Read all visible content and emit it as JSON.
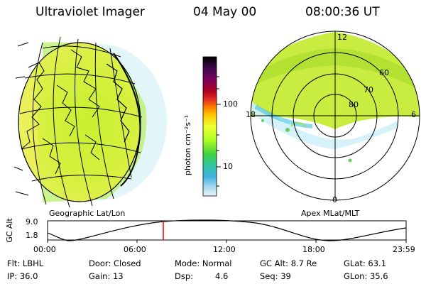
{
  "header": {
    "instrument": "Ultraviolet Imager",
    "date": "04 May 00",
    "time": "08:00:36 UT"
  },
  "panels": {
    "left_label": "Geographic Lat/Lon",
    "right_label": "Apex MLat/MLT"
  },
  "colorbar": {
    "unit_label": "photon cm⁻²s⁻¹",
    "ticks": [
      "100",
      "10"
    ],
    "colors": [
      "#000000",
      "#3a0a4a",
      "#7a0060",
      "#b00020",
      "#e83020",
      "#ff7a00",
      "#ffc800",
      "#f0ff30",
      "#aaff20",
      "#40d040",
      "#30c8a0",
      "#40b0e0",
      "#a0d8f0",
      "#e8f4fa"
    ]
  },
  "polar": {
    "mlt_labels": {
      "top": "12",
      "right": "6",
      "left": "18",
      "bottom": "0"
    },
    "mlat_labels": [
      "60",
      "70",
      "80"
    ]
  },
  "altitude_plot": {
    "ylabel": "GC Alt",
    "yticks": [
      "9.0",
      "1.8"
    ],
    "xticks": [
      "00:00",
      "06:00",
      "12:00",
      "18:00",
      "23:59"
    ]
  },
  "info": {
    "flt": "Flt: LBHL",
    "ip": "IP: 36.0",
    "door": "Door: Closed",
    "gain": "Gain: 13",
    "mode": "Mode: Normal",
    "dsp_label": "Dsp:",
    "dsp_value": "4.6",
    "gcalt": "GC Alt: 8.7 Re",
    "seq": "Seq: 39",
    "glat": "GLat:  63.1",
    "glon": "GLon:  35.6"
  }
}
